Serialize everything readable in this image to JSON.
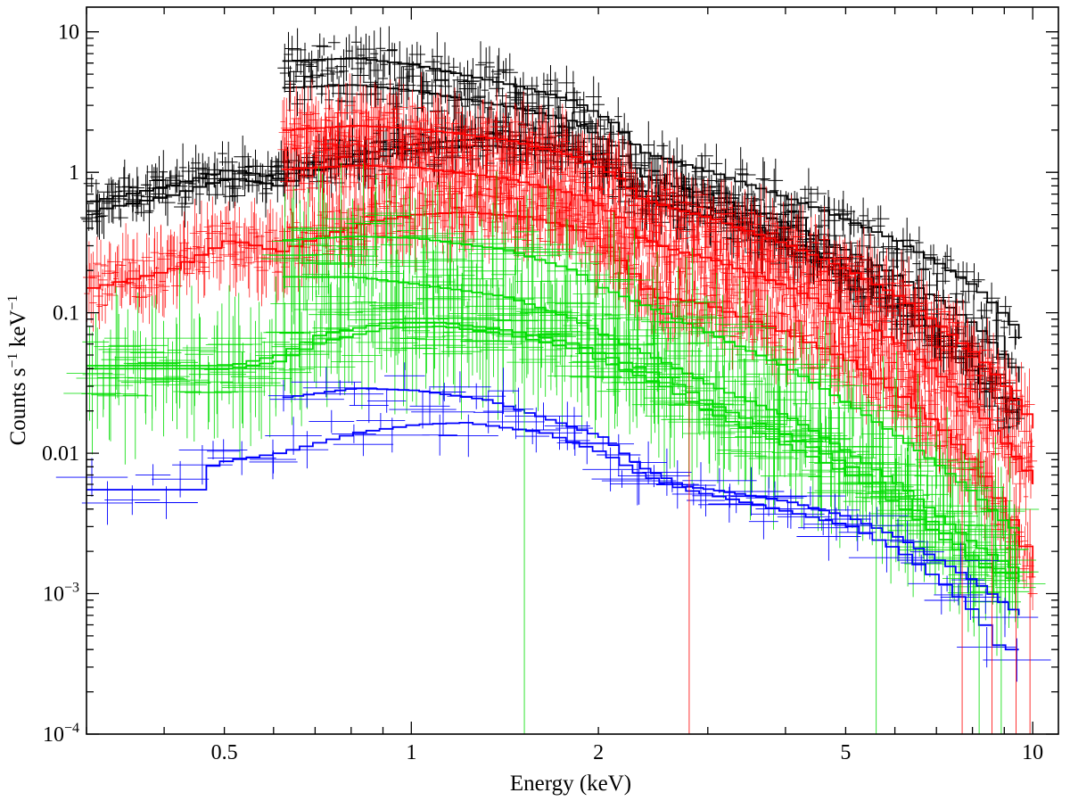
{
  "chart_data": {
    "type": "line",
    "x_scale": "log",
    "y_scale": "log",
    "xlabel": "Energy (keV)",
    "ylabel_base": "Counts s",
    "ylabel_s_exp": "−1",
    "ylabel_mid": " keV",
    "ylabel_k_exp": "−1",
    "xlim": [
      0.3,
      11.0
    ],
    "ylim": [
      0.0001,
      15
    ],
    "x_ticks": [
      {
        "value": 0.5,
        "label": "0.5"
      },
      {
        "value": 1,
        "label": "1"
      },
      {
        "value": 2,
        "label": "2"
      },
      {
        "value": 5,
        "label": "5"
      },
      {
        "value": 10,
        "label": "10"
      }
    ],
    "y_ticks": [
      {
        "value": 10,
        "base": "10",
        "exp": ""
      },
      {
        "value": 1,
        "base": "1",
        "exp": ""
      },
      {
        "value": 0.1,
        "base": "0.1",
        "exp": ""
      },
      {
        "value": 0.01,
        "base": "0.01",
        "exp": ""
      },
      {
        "value": 0.001,
        "base": "10",
        "exp": "−3"
      },
      {
        "value": 0.0001,
        "base": "10",
        "exp": "−4"
      }
    ],
    "colors": {
      "black": "#000000",
      "red": "#ff0000",
      "green": "#00dd00",
      "blue": "#0000ff"
    },
    "series": [
      {
        "name": "black-model-1",
        "color": "black",
        "x_range": [
          0.62,
          9.5
        ],
        "points": [
          [
            0.62,
            6.2
          ],
          [
            0.8,
            6.5
          ],
          [
            1.0,
            5.8
          ],
          [
            1.5,
            4.0
          ],
          [
            1.8,
            3.2
          ],
          [
            2.1,
            2.2
          ],
          [
            2.3,
            1.4
          ],
          [
            2.6,
            1.2
          ],
          [
            3.0,
            1.0
          ],
          [
            4.0,
            0.65
          ],
          [
            5.0,
            0.45
          ],
          [
            6.0,
            0.32
          ],
          [
            7.0,
            0.22
          ],
          [
            8.0,
            0.15
          ],
          [
            9.0,
            0.09
          ],
          [
            9.5,
            0.065
          ]
        ]
      },
      {
        "name": "black-model-2",
        "color": "black",
        "x_range": [
          0.62,
          9.5
        ],
        "points": [
          [
            0.62,
            4.0
          ],
          [
            0.8,
            4.2
          ],
          [
            1.0,
            3.8
          ],
          [
            1.5,
            2.8
          ],
          [
            1.8,
            2.3
          ],
          [
            2.1,
            1.5
          ],
          [
            2.3,
            0.95
          ],
          [
            2.6,
            0.8
          ],
          [
            3.0,
            0.68
          ],
          [
            4.0,
            0.42
          ],
          [
            5.0,
            0.27
          ],
          [
            6.0,
            0.18
          ],
          [
            7.0,
            0.12
          ],
          [
            8.0,
            0.08
          ],
          [
            9.0,
            0.045
          ],
          [
            9.5,
            0.032
          ]
        ]
      },
      {
        "name": "black-model-3",
        "color": "black",
        "x_range": [
          0.3,
          9.5
        ],
        "points": [
          [
            0.3,
            0.62
          ],
          [
            0.4,
            0.8
          ],
          [
            0.5,
            1.05
          ],
          [
            0.6,
            0.9
          ],
          [
            0.7,
            1.2
          ],
          [
            1.0,
            1.6
          ],
          [
            1.3,
            1.75
          ],
          [
            1.7,
            1.55
          ],
          [
            2.0,
            1.2
          ],
          [
            2.3,
            0.7
          ],
          [
            2.6,
            0.62
          ],
          [
            3.0,
            0.55
          ],
          [
            4.0,
            0.32
          ],
          [
            5.0,
            0.2
          ],
          [
            6.0,
            0.12
          ],
          [
            7.0,
            0.07
          ],
          [
            8.0,
            0.045
          ],
          [
            9.0,
            0.025
          ],
          [
            9.5,
            0.02
          ]
        ]
      },
      {
        "name": "black-model-4",
        "color": "black",
        "x_range": [
          0.3,
          9.5
        ],
        "points": [
          [
            0.3,
            0.53
          ],
          [
            0.4,
            0.68
          ],
          [
            0.5,
            0.92
          ],
          [
            0.6,
            0.8
          ],
          [
            0.7,
            1.05
          ],
          [
            1.0,
            1.45
          ],
          [
            1.3,
            1.55
          ],
          [
            1.7,
            1.4
          ],
          [
            2.0,
            1.05
          ],
          [
            2.3,
            0.62
          ],
          [
            2.6,
            0.55
          ],
          [
            3.0,
            0.48
          ],
          [
            4.0,
            0.28
          ],
          [
            5.0,
            0.17
          ],
          [
            6.0,
            0.1
          ],
          [
            7.0,
            0.06
          ],
          [
            8.0,
            0.035
          ],
          [
            9.0,
            0.02
          ],
          [
            9.5,
            0.016
          ]
        ]
      },
      {
        "name": "red-model-1",
        "color": "red",
        "x_range": [
          0.62,
          10.0
        ],
        "points": [
          [
            0.62,
            2.0
          ],
          [
            0.8,
            2.15
          ],
          [
            1.0,
            2.05
          ],
          [
            1.4,
            1.7
          ],
          [
            1.8,
            1.3
          ],
          [
            2.1,
            0.95
          ],
          [
            2.3,
            0.65
          ],
          [
            2.6,
            0.55
          ],
          [
            3.0,
            0.47
          ],
          [
            4.0,
            0.3
          ],
          [
            5.0,
            0.2
          ],
          [
            6.0,
            0.13
          ],
          [
            7.0,
            0.08
          ],
          [
            8.0,
            0.05
          ],
          [
            9.0,
            0.028
          ],
          [
            10.0,
            0.015
          ]
        ]
      },
      {
        "name": "red-model-2",
        "color": "red",
        "x_range": [
          0.62,
          10.0
        ],
        "points": [
          [
            0.62,
            1.05
          ],
          [
            0.8,
            1.12
          ],
          [
            1.0,
            1.08
          ],
          [
            1.4,
            0.9
          ],
          [
            1.8,
            0.7
          ],
          [
            2.1,
            0.5
          ],
          [
            2.3,
            0.34
          ],
          [
            2.6,
            0.28
          ],
          [
            3.0,
            0.24
          ],
          [
            4.0,
            0.15
          ],
          [
            5.0,
            0.095
          ],
          [
            6.0,
            0.06
          ],
          [
            7.0,
            0.035
          ],
          [
            8.0,
            0.02
          ],
          [
            9.0,
            0.011
          ],
          [
            10.0,
            0.006
          ]
        ]
      },
      {
        "name": "red-model-3",
        "color": "red",
        "x_range": [
          0.3,
          10.0
        ],
        "points": [
          [
            0.3,
            0.15
          ],
          [
            0.4,
            0.2
          ],
          [
            0.5,
            0.33
          ],
          [
            0.55,
            0.3
          ],
          [
            0.6,
            0.27
          ],
          [
            0.7,
            0.35
          ],
          [
            0.85,
            0.45
          ],
          [
            1.0,
            0.5
          ],
          [
            1.2,
            0.52
          ],
          [
            1.5,
            0.48
          ],
          [
            1.8,
            0.4
          ],
          [
            2.0,
            0.3
          ],
          [
            2.2,
            0.2
          ],
          [
            2.4,
            0.13
          ],
          [
            2.8,
            0.12
          ],
          [
            3.0,
            0.11
          ],
          [
            4.0,
            0.07
          ],
          [
            5.0,
            0.045
          ],
          [
            6.0,
            0.026
          ],
          [
            7.0,
            0.015
          ],
          [
            8.0,
            0.008
          ],
          [
            9.0,
            0.0035
          ],
          [
            9.5,
            0.0022
          ],
          [
            10.0,
            0.0013
          ]
        ]
      },
      {
        "name": "green-model-1",
        "color": "green",
        "x_range": [
          0.62,
          9.5
        ],
        "points": [
          [
            0.62,
            0.33
          ],
          [
            0.8,
            0.35
          ],
          [
            1.0,
            0.34
          ],
          [
            1.4,
            0.28
          ],
          [
            1.8,
            0.2
          ],
          [
            2.0,
            0.15
          ],
          [
            2.5,
            0.1
          ],
          [
            3.0,
            0.07
          ],
          [
            4.0,
            0.04
          ],
          [
            5.0,
            0.022
          ],
          [
            6.0,
            0.013
          ],
          [
            7.0,
            0.008
          ],
          [
            8.0,
            0.005
          ],
          [
            9.0,
            0.003
          ],
          [
            9.5,
            0.0028
          ]
        ]
      },
      {
        "name": "green-model-2",
        "color": "green",
        "x_range": [
          0.62,
          9.5
        ],
        "points": [
          [
            0.62,
            0.18
          ],
          [
            0.8,
            0.18
          ],
          [
            1.0,
            0.16
          ],
          [
            1.4,
            0.13
          ],
          [
            1.8,
            0.09
          ],
          [
            2.0,
            0.07
          ],
          [
            2.5,
            0.045
          ],
          [
            3.0,
            0.03
          ],
          [
            4.0,
            0.018
          ],
          [
            5.0,
            0.01
          ],
          [
            6.0,
            0.006
          ],
          [
            7.0,
            0.0035
          ],
          [
            8.0,
            0.0022
          ],
          [
            9.0,
            0.0016
          ],
          [
            9.5,
            0.0014
          ]
        ]
      },
      {
        "name": "green-model-3",
        "color": "green",
        "x_range": [
          0.3,
          9.5
        ],
        "points": [
          [
            0.3,
            0.042
          ],
          [
            0.5,
            0.042
          ],
          [
            0.6,
            0.05
          ],
          [
            0.7,
            0.07
          ],
          [
            0.9,
            0.085
          ],
          [
            1.1,
            0.085
          ],
          [
            1.4,
            0.075
          ],
          [
            1.8,
            0.06
          ],
          [
            2.0,
            0.05
          ],
          [
            2.5,
            0.035
          ],
          [
            3.0,
            0.022
          ],
          [
            4.0,
            0.013
          ],
          [
            5.0,
            0.008
          ],
          [
            6.0,
            0.005
          ],
          [
            7.0,
            0.0028
          ],
          [
            8.0,
            0.0017
          ],
          [
            9.0,
            0.0014
          ],
          [
            9.5,
            0.0013
          ]
        ]
      },
      {
        "name": "green-model-4",
        "color": "green",
        "x_range": [
          0.3,
          9.5
        ],
        "points": [
          [
            0.3,
            0.04
          ],
          [
            0.5,
            0.04
          ],
          [
            0.6,
            0.045
          ],
          [
            0.7,
            0.062
          ],
          [
            0.9,
            0.078
          ],
          [
            1.1,
            0.08
          ],
          [
            1.4,
            0.07
          ],
          [
            1.8,
            0.055
          ],
          [
            2.0,
            0.045
          ],
          [
            2.5,
            0.03
          ],
          [
            3.0,
            0.019
          ],
          [
            4.0,
            0.011
          ],
          [
            5.0,
            0.007
          ],
          [
            6.0,
            0.0042
          ],
          [
            7.0,
            0.0025
          ],
          [
            8.0,
            0.0016
          ],
          [
            9.0,
            0.0013
          ],
          [
            9.5,
            0.0012
          ]
        ]
      },
      {
        "name": "blue-model-1",
        "color": "blue",
        "x_range": [
          0.62,
          9.5
        ],
        "points": [
          [
            0.62,
            0.025
          ],
          [
            0.8,
            0.029
          ],
          [
            1.0,
            0.028
          ],
          [
            1.3,
            0.024
          ],
          [
            1.6,
            0.018
          ],
          [
            2.0,
            0.013
          ],
          [
            2.3,
            0.008
          ],
          [
            2.7,
            0.0058
          ],
          [
            3.0,
            0.0055
          ],
          [
            4.0,
            0.0045
          ],
          [
            5.0,
            0.0035
          ],
          [
            6.0,
            0.0025
          ],
          [
            7.0,
            0.0017
          ],
          [
            8.0,
            0.0012
          ],
          [
            9.0,
            0.0008
          ],
          [
            9.5,
            0.0007
          ]
        ]
      },
      {
        "name": "blue-model-2",
        "color": "blue",
        "x_range": [
          0.3,
          9.5
        ],
        "points": [
          [
            0.3,
            0.0055
          ],
          [
            0.45,
            0.0055
          ],
          [
            0.47,
            0.0085
          ],
          [
            0.6,
            0.01
          ],
          [
            0.8,
            0.014
          ],
          [
            1.0,
            0.016
          ],
          [
            1.2,
            0.0165
          ],
          [
            1.6,
            0.014
          ],
          [
            2.0,
            0.01
          ],
          [
            2.3,
            0.007
          ],
          [
            2.7,
            0.0055
          ],
          [
            3.0,
            0.005
          ],
          [
            4.0,
            0.0038
          ],
          [
            5.0,
            0.003
          ],
          [
            6.0,
            0.002
          ],
          [
            7.0,
            0.0012
          ],
          [
            8.0,
            0.0007
          ],
          [
            8.7,
            0.0004
          ],
          [
            9.5,
            0.0004
          ]
        ]
      }
    ]
  }
}
